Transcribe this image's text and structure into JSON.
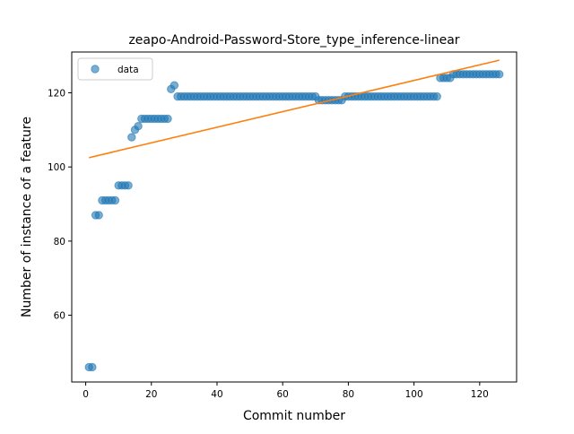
{
  "chart_data": {
    "type": "scatter",
    "title": "zeapo-Android-Password-Store_type_inference-linear",
    "xlabel": "Commit number",
    "ylabel": "Number of instance of a feature",
    "xlim": [
      -4.25,
      131.25
    ],
    "ylim": [
      42.0,
      131.0
    ],
    "xticks": [
      0,
      20,
      40,
      60,
      80,
      100,
      120
    ],
    "yticks": [
      60,
      80,
      100,
      120
    ],
    "legend": {
      "position": "top-left",
      "label": "data"
    },
    "colors": {
      "points": "#1f77b4",
      "fit_line": "#ff7f0e"
    },
    "series": [
      {
        "name": "data",
        "kind": "scatter",
        "x": [
          1,
          2,
          3,
          4,
          5,
          6,
          7,
          8,
          9,
          10,
          11,
          12,
          13,
          14,
          15,
          16,
          17,
          18,
          19,
          20,
          21,
          22,
          23,
          24,
          25,
          26,
          27,
          28,
          29,
          30,
          31,
          32,
          33,
          34,
          35,
          36,
          37,
          38,
          39,
          40,
          41,
          42,
          43,
          44,
          45,
          46,
          47,
          48,
          49,
          50,
          51,
          52,
          53,
          54,
          55,
          56,
          57,
          58,
          59,
          60,
          61,
          62,
          63,
          64,
          65,
          66,
          67,
          68,
          69,
          70,
          71,
          72,
          73,
          74,
          75,
          76,
          77,
          78,
          79,
          80,
          81,
          82,
          83,
          84,
          85,
          86,
          87,
          88,
          89,
          90,
          91,
          92,
          93,
          94,
          95,
          96,
          97,
          98,
          99,
          100,
          101,
          102,
          103,
          104,
          105,
          106,
          107,
          108,
          109,
          110,
          111,
          112,
          113,
          114,
          115,
          116,
          117,
          118,
          119,
          120,
          121,
          122,
          123,
          124,
          125,
          126
        ],
        "y": [
          46,
          46,
          87,
          87,
          91,
          91,
          91,
          91,
          91,
          95,
          95,
          95,
          95,
          108,
          110,
          111,
          113,
          113,
          113,
          113,
          113,
          113,
          113,
          113,
          113,
          121,
          122,
          119,
          119,
          119,
          119,
          119,
          119,
          119,
          119,
          119,
          119,
          119,
          119,
          119,
          119,
          119,
          119,
          119,
          119,
          119,
          119,
          119,
          119,
          119,
          119,
          119,
          119,
          119,
          119,
          119,
          119,
          119,
          119,
          119,
          119,
          119,
          119,
          119,
          119,
          119,
          119,
          119,
          119,
          119,
          118,
          118,
          118,
          118,
          118,
          118,
          118,
          118,
          119,
          119,
          119,
          119,
          119,
          119,
          119,
          119,
          119,
          119,
          119,
          119,
          119,
          119,
          119,
          119,
          119,
          119,
          119,
          119,
          119,
          119,
          119,
          119,
          119,
          119,
          119,
          119,
          119,
          124,
          124,
          124,
          124,
          125,
          125,
          125,
          125,
          125,
          125,
          125,
          125,
          125,
          125,
          125,
          125,
          125,
          125,
          125
        ]
      },
      {
        "name": "linear fit",
        "kind": "line",
        "x": [
          1,
          126
        ],
        "y": [
          102.5,
          128.8
        ]
      }
    ]
  }
}
